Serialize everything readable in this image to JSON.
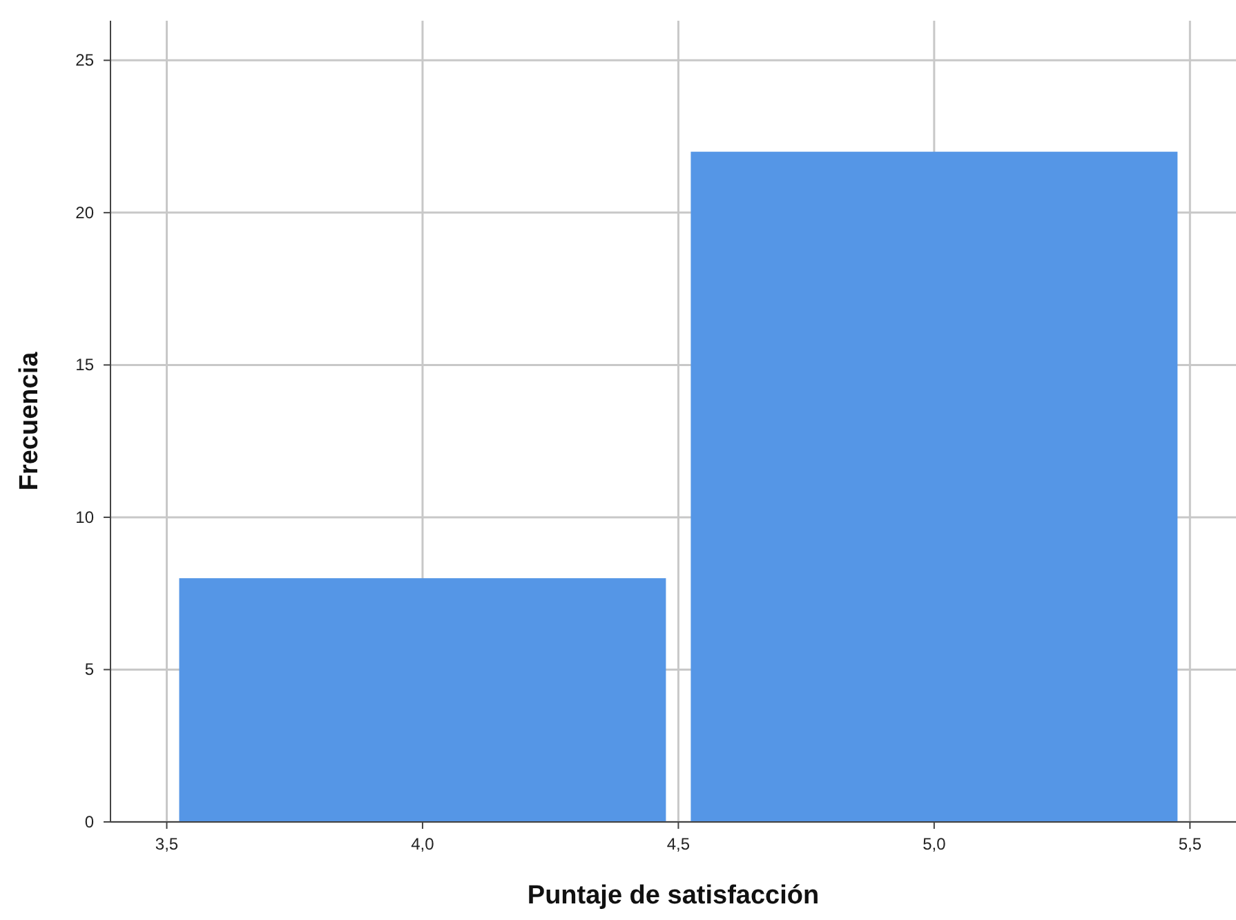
{
  "chart_data": {
    "type": "histogram",
    "xlabel": "Puntaje de satisfacción",
    "ylabel": "Frecuencia",
    "bins": [
      3.5,
      4.5,
      5.5
    ],
    "values": [
      8,
      22
    ],
    "color": "#5596e6",
    "xlim": [
      3.39,
      5.59
    ],
    "ylim": [
      0,
      26.3
    ],
    "xticks": [
      {
        "value": 3.5,
        "label": "3,5"
      },
      {
        "value": 4.0,
        "label": "4,0"
      },
      {
        "value": 4.5,
        "label": "4,5"
      },
      {
        "value": 5.0,
        "label": "5,0"
      },
      {
        "value": 5.5,
        "label": "5,5"
      }
    ],
    "yticks": [
      0,
      5,
      10,
      15,
      20,
      25
    ],
    "grid": true
  }
}
